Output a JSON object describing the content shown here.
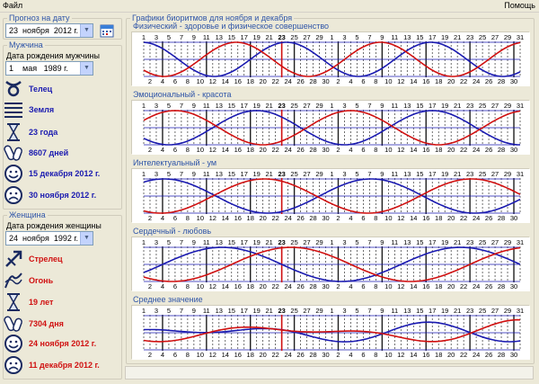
{
  "menu": {
    "file": "Файл",
    "help": "Помощь"
  },
  "forecast": {
    "title": "Прогноз на дату",
    "day": "23",
    "month": "ноября",
    "year": "2012 г."
  },
  "man": {
    "title": "Мужчина",
    "birth_label": "Дата рождения мужчины",
    "birth_day": "1",
    "birth_month": "мая",
    "birth_year": "1989 г.",
    "zodiac": "Телец",
    "element": "Земля",
    "age": "23 года",
    "days_lived": "8607 дней",
    "good_date": "15 декабря 2012 г.",
    "bad_date": "30 ноября 2012 г."
  },
  "woman": {
    "title": "Женщина",
    "birth_label": "Дата рождения женщины",
    "birth_day": "24",
    "birth_month": "ноября",
    "birth_year": "1992 г.",
    "zodiac": "Стрелец",
    "element": "Огонь",
    "age": "19 лет",
    "days_lived": "7304 дня",
    "good_date": "24 ноября 2012 г.",
    "bad_date": "11 декабря 2012 г."
  },
  "charts_group_title": "Графики биоритмов для ноября и декабря",
  "colors": {
    "man": "#1a1ab0",
    "woman": "#d01010"
  },
  "chart_data": [
    {
      "type": "line",
      "title": "Физический - здоровье и физическое совершенство",
      "period_days": 23,
      "series": [
        {
          "name": "",
          "color": "#1a1ab0",
          "days_lived_at_nov1": 8585
        },
        {
          "name": "",
          "color": "#d01010",
          "days_lived_at_nov1": 7282
        }
      ]
    },
    {
      "type": "line",
      "title": "Эмоциональный - красота",
      "period_days": 28,
      "series": [
        {
          "name": "",
          "color": "#1a1ab0",
          "days_lived_at_nov1": 8585
        },
        {
          "name": "",
          "color": "#d01010",
          "days_lived_at_nov1": 7282
        }
      ]
    },
    {
      "type": "line",
      "title": "Интелектуальный - ум",
      "period_days": 33,
      "series": [
        {
          "name": "",
          "color": "#1a1ab0",
          "days_lived_at_nov1": 8585
        },
        {
          "name": "",
          "color": "#d01010",
          "days_lived_at_nov1": 7282
        }
      ]
    },
    {
      "type": "line",
      "title": "Сердечный - любовь",
      "period_days": 38,
      "series": [
        {
          "name": "",
          "color": "#1a1ab0",
          "days_lived_at_nov1": 8585
        },
        {
          "name": "",
          "color": "#d01010",
          "days_lived_at_nov1": 7282
        }
      ]
    },
    {
      "type": "line",
      "title": "Среднее значение",
      "period_days": 0,
      "series": [
        {
          "name": "",
          "color": "#1a1ab0",
          "days_lived_at_nov1": 8585
        },
        {
          "name": "",
          "color": "#d01010",
          "days_lived_at_nov1": 7282
        }
      ]
    }
  ],
  "axis": {
    "top_ticks": [
      "1",
      "3",
      "5",
      "7",
      "9",
      "11",
      "13",
      "15",
      "17",
      "19",
      "21",
      "23",
      "25",
      "27",
      "29",
      "1",
      "3",
      "5",
      "7",
      "9",
      "11",
      "13",
      "15",
      "17",
      "19",
      "21",
      "23",
      "25",
      "27",
      "29",
      "31"
    ],
    "bottom_ticks": [
      "2",
      "4",
      "6",
      "8",
      "10",
      "12",
      "14",
      "16",
      "18",
      "20",
      "22",
      "24",
      "26",
      "28",
      "30",
      "2",
      "4",
      "6",
      "8",
      "10",
      "12",
      "14",
      "16",
      "18",
      "20",
      "22",
      "24",
      "26",
      "28",
      "30"
    ],
    "highlight_day": "23",
    "ylim": [
      -1,
      1
    ]
  }
}
